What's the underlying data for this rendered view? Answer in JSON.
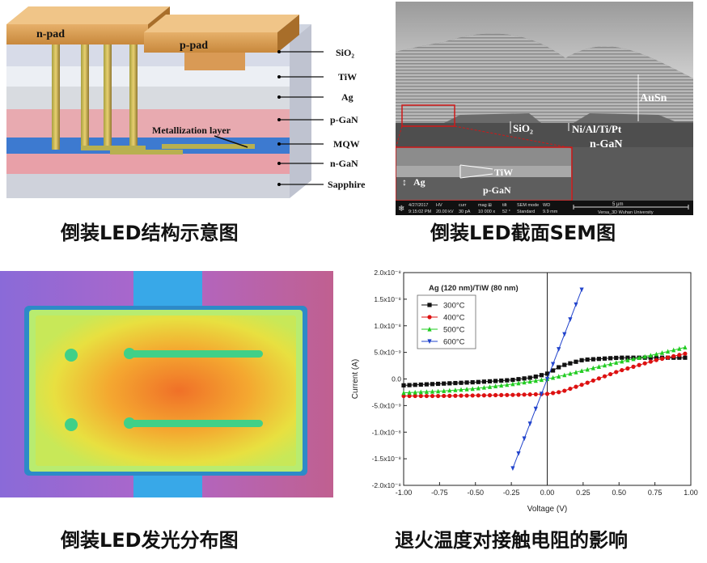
{
  "structure": {
    "layers": [
      "SiO₂",
      "TiW",
      "Ag",
      "p-GaN",
      "MQW",
      "n-GaN",
      "Sapphire"
    ],
    "n_pad": "n-pad",
    "p_pad": "p-pad",
    "metallization": "Metallization layer",
    "caption": "倒装LED结构示意图"
  },
  "sem": {
    "labels": {
      "ausn": "AuSn",
      "sio2": "SiO₂",
      "metals": "Ni/Al/Ti/Pt",
      "ngan": "n-GaN",
      "ag": "Ag",
      "tiw": "TiW",
      "pgan": "p-GaN"
    },
    "info": {
      "date": "4/27/2017",
      "time": "9:15:02 PM",
      "hv_label": "HV",
      "hv": "20.00 kV",
      "curr_label": "curr",
      "curr": "30 pA",
      "mag_label": "mag ⊞",
      "mag": "10 000 x",
      "tilt_label": "tilt",
      "tilt": "52 °",
      "mode_label": "SEM mode",
      "mode": "Standard",
      "wd_label": "WD",
      "wd": "9.9 mm",
      "scale": "5 μm",
      "org": "Versa_3D Wuhan University"
    },
    "caption": "倒装LED截面SEM图"
  },
  "luminescence": {
    "caption": "倒装LED发光分布图"
  },
  "iv": {
    "caption": "退火温度对接触电阻的影响",
    "chart_data": {
      "type": "line",
      "title": "Ag (120 nm)/TiW (80 nm)",
      "xlabel": "Voltage (V)",
      "ylabel": "Current (A)",
      "xlim": [
        -1.0,
        1.0
      ],
      "ylim": [
        -2e-08,
        2e-08
      ],
      "x_ticks": [
        "-1.00",
        "-0.75",
        "-0.50",
        "-0.25",
        "0.00",
        "0.25",
        "0.50",
        "0.75",
        "1.00"
      ],
      "y_ticks": [
        "-2.0x10⁻⁸",
        "-1.5x10⁻⁸",
        "-1.0x10⁻⁸",
        "-5.0x10⁻⁹",
        "0.0",
        "5.0x10⁻⁹",
        "1.0x10⁻⁸",
        "1.5x10⁻⁸",
        "2.0x10⁻⁸"
      ],
      "legend_position": "top-left",
      "x": [
        -1.0,
        -0.75,
        -0.5,
        -0.25,
        -0.1,
        0.0,
        0.1,
        0.25,
        0.5,
        0.75,
        1.0
      ],
      "series": [
        {
          "name": "300°C",
          "color": "#111111",
          "marker": "square",
          "values": [
            -1.2e-09,
            -9e-10,
            -6e-10,
            -2e-10,
            3e-10,
            1e-09,
            2.5e-09,
            3.6e-09,
            4e-09,
            4e-09,
            4e-09
          ]
        },
        {
          "name": "400°C",
          "color": "#dd1111",
          "marker": "circle",
          "values": [
            -3.2e-09,
            -3.2e-09,
            -3.1e-09,
            -3e-09,
            -2.9e-09,
            -2.8e-09,
            -2.4e-09,
            -1e-09,
            1.5e-09,
            3.5e-09,
            5e-09
          ]
        },
        {
          "name": "500°C",
          "color": "#22cc22",
          "marker": "triangle-up",
          "values": [
            -2.6e-09,
            -2.3e-09,
            -1.8e-09,
            -1e-09,
            -4e-10,
            0.0,
            6e-10,
            1.6e-09,
            3.2e-09,
            4.6e-09,
            6.2e-09
          ]
        },
        {
          "name": "600°C",
          "color": "#2244cc",
          "marker": "triangle-down",
          "values": [
            null,
            null,
            null,
            -1.75e-08,
            -7e-09,
            0.0,
            7e-09,
            1.75e-08,
            null,
            null,
            null
          ]
        }
      ]
    }
  }
}
